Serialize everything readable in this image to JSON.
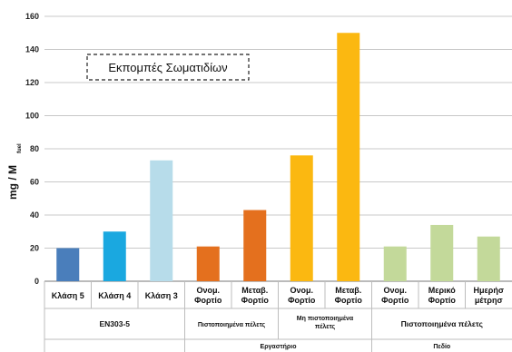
{
  "chart_data": {
    "type": "bar",
    "title": "",
    "annotation": "Εκπομπές Σωματιδίων",
    "ylabel": "mg / M",
    "ylabel_sub": "fuel",
    "ylim": [
      0,
      160
    ],
    "yticks": [
      0,
      20,
      40,
      60,
      80,
      100,
      120,
      140,
      160
    ],
    "grid": true,
    "categories": [
      [
        "Κλάση 5"
      ],
      [
        "Κλάση 4"
      ],
      [
        "Κλάση 3"
      ],
      [
        "Ονομ.",
        "Φορτίο"
      ],
      [
        "Μεταβ.",
        "Φορτίο"
      ],
      [
        "Ονομ.",
        "Φορτίο"
      ],
      [
        "Μεταβ.",
        "Φορτίο"
      ],
      [
        "Ονομ.",
        "Φορτίο"
      ],
      [
        "Μερικό",
        "Φορτίο"
      ],
      [
        "Ημερήσ",
        "μέτρησ"
      ]
    ],
    "values": [
      20,
      30,
      73,
      21,
      43,
      76,
      150,
      21,
      34,
      27
    ],
    "colors": [
      "#4a7ebb",
      "#1aa8e0",
      "#b7dcea",
      "#e4701e",
      "#e4701e",
      "#fbb811",
      "#fbb811",
      "#c3d99a",
      "#c3d99a",
      "#c3d99a"
    ],
    "groups_level1": [
      {
        "label": "EN303-5",
        "span": 3
      },
      {
        "label": "Πιστοποιημένα πέλετς",
        "span": 2
      },
      {
        "label": "Μη πιστοποιημένα πέλετς",
        "span": 2
      },
      {
        "label": "Πιστοποιημένα πέλετς",
        "span": 3
      }
    ],
    "groups_level2": [
      {
        "label": "",
        "span": 3
      },
      {
        "label": "Εργαστήριο",
        "span": 4
      },
      {
        "label": "Πεδίο",
        "span": 3
      }
    ]
  }
}
